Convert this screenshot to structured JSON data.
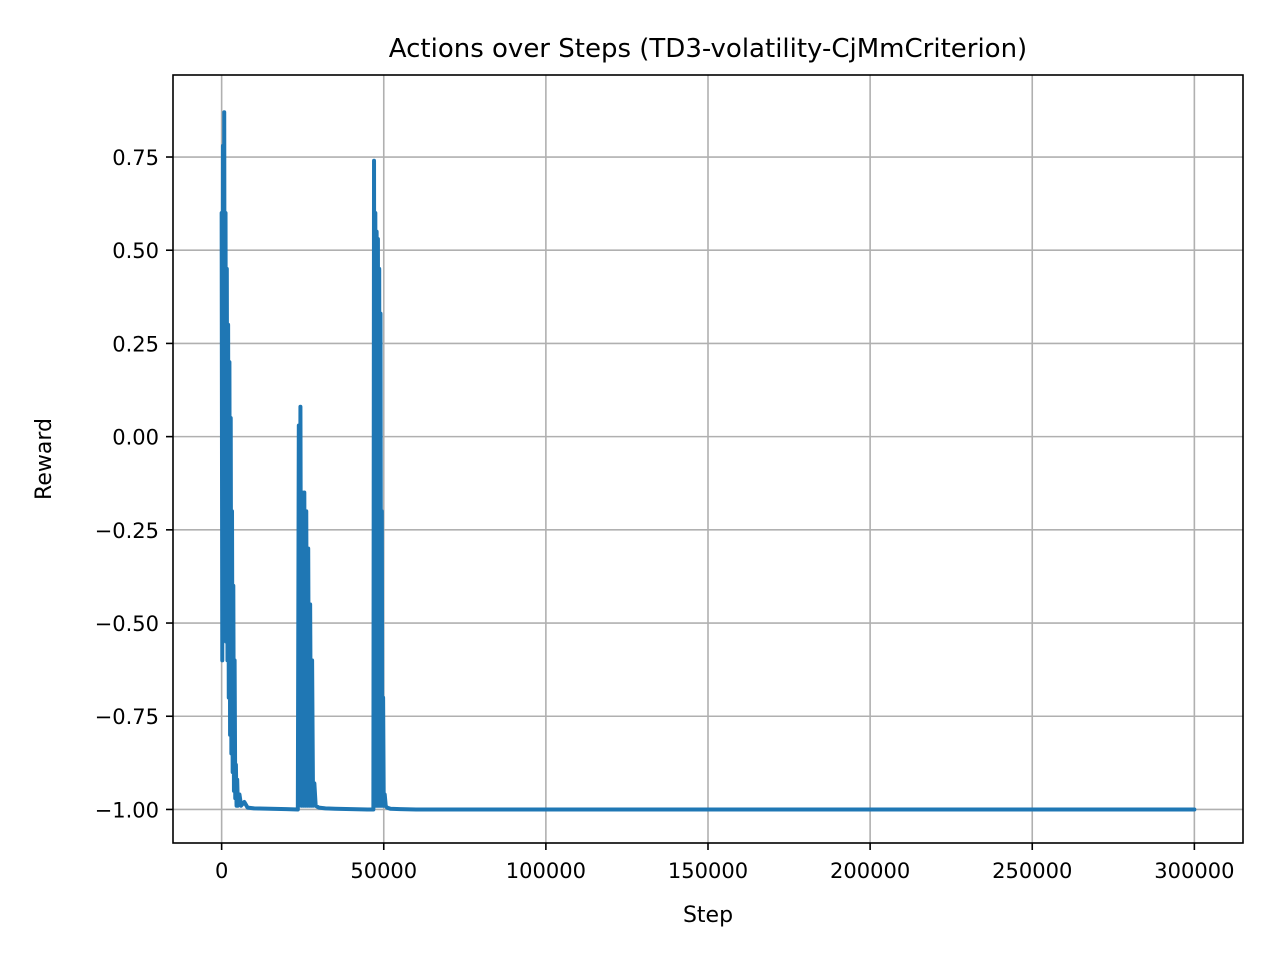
{
  "chart_data": {
    "type": "line",
    "title": "Actions over Steps (TD3-volatility-CjMmCriterion)",
    "xlabel": "Step",
    "ylabel": "Reward",
    "xlim": [
      -15000,
      315000
    ],
    "ylim": [
      -1.09,
      0.97
    ],
    "xticks": [
      0,
      50000,
      100000,
      150000,
      200000,
      250000,
      300000
    ],
    "xtick_labels": [
      "0",
      "50000",
      "100000",
      "150000",
      "200000",
      "250000",
      "300000"
    ],
    "yticks": [
      0.75,
      0.5,
      0.25,
      0.0,
      -0.25,
      -0.5,
      -0.75,
      -1.0
    ],
    "ytick_labels": [
      "0.75",
      "0.50",
      "0.25",
      "0.00",
      "−0.25",
      "−0.50",
      "−0.75",
      "−1.00"
    ],
    "grid": true,
    "color": "#1f77b4",
    "series": [
      {
        "x": [
          0,
          200,
          400,
          600,
          800,
          1000,
          1200,
          1400,
          1600,
          1800,
          2000,
          2200,
          2400,
          2600,
          2800,
          3000,
          3200,
          3400,
          3600,
          3800,
          4000,
          4200,
          4400,
          4600,
          4800,
          5000,
          5500,
          6000,
          7000,
          8000,
          10000,
          15000,
          20000,
          23500,
          23800,
          24000,
          24300,
          24600,
          24900,
          25200,
          25500,
          25800,
          26100,
          26400,
          26700,
          27000,
          27300,
          27600,
          27900,
          28200,
          28600,
          29000,
          30000,
          32000,
          35000,
          40000,
          45000,
          46800,
          47000,
          47200,
          47400,
          47600,
          47800,
          48000,
          48200,
          48400,
          48600,
          48800,
          49000,
          49200,
          49400,
          49600,
          49800,
          50000,
          50300,
          50600,
          51000,
          52000,
          55000,
          60000,
          100000,
          150000,
          200000,
          250000,
          300000
        ],
        "y": [
          0.6,
          -0.6,
          0.78,
          -0.3,
          0.87,
          -0.5,
          0.6,
          -0.55,
          0.45,
          -0.6,
          0.3,
          -0.7,
          0.2,
          -0.8,
          0.05,
          -0.85,
          -0.2,
          -0.9,
          -0.4,
          -0.95,
          -0.6,
          -0.97,
          -0.88,
          -0.99,
          -0.92,
          -0.99,
          -0.96,
          -0.99,
          -0.98,
          -0.995,
          -0.997,
          -0.998,
          -0.999,
          -1.0,
          0.03,
          -0.98,
          0.08,
          -0.99,
          -0.15,
          -0.99,
          -0.15,
          -0.99,
          -0.2,
          -0.99,
          -0.3,
          -0.99,
          -0.45,
          -0.99,
          -0.6,
          -0.99,
          -0.93,
          -0.99,
          -0.995,
          -0.997,
          -0.998,
          -0.999,
          -1.0,
          -1.0,
          0.74,
          -0.98,
          0.6,
          -0.99,
          0.55,
          -0.99,
          0.53,
          -0.99,
          0.45,
          -0.99,
          0.33,
          -0.99,
          -0.2,
          -0.99,
          -0.7,
          -0.99,
          -0.96,
          -0.99,
          -0.995,
          -0.998,
          -0.999,
          -1.0,
          -1.0,
          -1.0,
          -1.0,
          -1.0,
          -1.0
        ]
      }
    ]
  }
}
